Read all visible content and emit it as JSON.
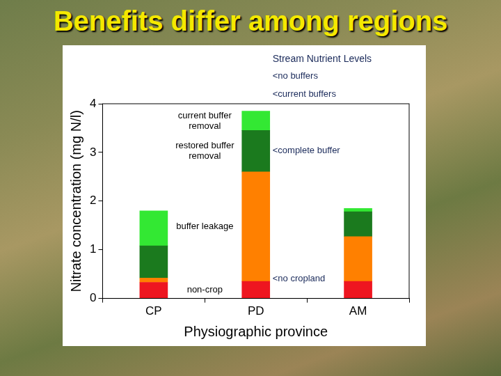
{
  "chart_data": {
    "type": "bar",
    "title": "Benefits differ among regions",
    "subtitle": "Stream Nutrient Levels",
    "annotations": [
      "<no buffers",
      "<current buffers",
      "<complete buffer",
      "<no cropland"
    ],
    "x_label": "Physiographic province",
    "y_label": "Nitrate concentration (mg N/l)",
    "categories": [
      "CP",
      "PD",
      "AM"
    ],
    "series": [
      {
        "name": "non-crop",
        "color": "#ee1620",
        "values": [
          0.33,
          0.35,
          0.35
        ]
      },
      {
        "name": "buffer leakage",
        "color": "#ff8000",
        "values": [
          0.09,
          2.25,
          0.92
        ]
      },
      {
        "name": "restored buffer removal",
        "color": "#1b7a1e",
        "values": [
          0.66,
          0.85,
          0.51
        ]
      },
      {
        "name": "current buffer removal",
        "color": "#33e833",
        "values": [
          0.72,
          0.4,
          0.07
        ]
      }
    ],
    "stacked": true,
    "ylim": [
      0,
      4
    ],
    "yticks": [
      0,
      1,
      2,
      3,
      4
    ],
    "grid": false
  }
}
